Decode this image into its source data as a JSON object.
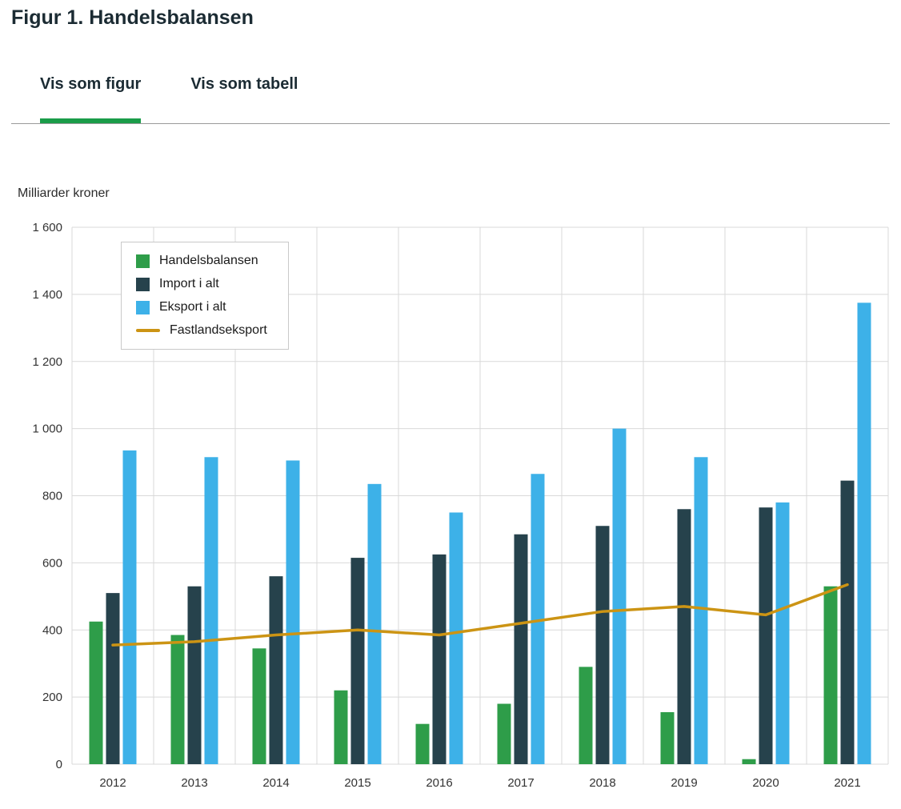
{
  "header": {
    "title": "Figur 1. Handelsbalansen"
  },
  "tabs": [
    {
      "label": "Vis som figur",
      "active": true
    },
    {
      "label": "Vis som tabell",
      "active": false
    }
  ],
  "colors": {
    "accent_green": "#1a9c49",
    "grid_line": "#d9d9d9",
    "tab_separator": "#9a9a9a",
    "title_text": "#1b2b33",
    "tick_text": "#333333"
  },
  "chart_data": {
    "type": "bar",
    "title": "Figur 1. Handelsbalansen",
    "ylabel": "Milliarder kroner",
    "xlabel": "",
    "ylim": [
      0,
      1600
    ],
    "ytick_step": 200,
    "grid": true,
    "legend_position": "top-left-inside",
    "categories": [
      "2012",
      "2013",
      "2014",
      "2015",
      "2016",
      "2017",
      "2018",
      "2019",
      "2020",
      "2021"
    ],
    "series": [
      {
        "name": "Handelsbalansen",
        "type": "bar",
        "color": "#2e9d49",
        "values": [
          425,
          385,
          345,
          220,
          120,
          180,
          290,
          155,
          15,
          530
        ]
      },
      {
        "name": "Import i alt",
        "type": "bar",
        "color": "#26424c",
        "values": [
          510,
          530,
          560,
          615,
          625,
          685,
          710,
          760,
          765,
          845
        ]
      },
      {
        "name": "Eksport i alt",
        "type": "bar",
        "color": "#3db1e8",
        "values": [
          935,
          915,
          905,
          835,
          750,
          865,
          1000,
          915,
          780,
          1375
        ]
      },
      {
        "name": "Fastlandseksport",
        "type": "line",
        "color": "#cc9414",
        "values": [
          355,
          365,
          385,
          400,
          385,
          420,
          455,
          470,
          445,
          535
        ]
      }
    ]
  }
}
